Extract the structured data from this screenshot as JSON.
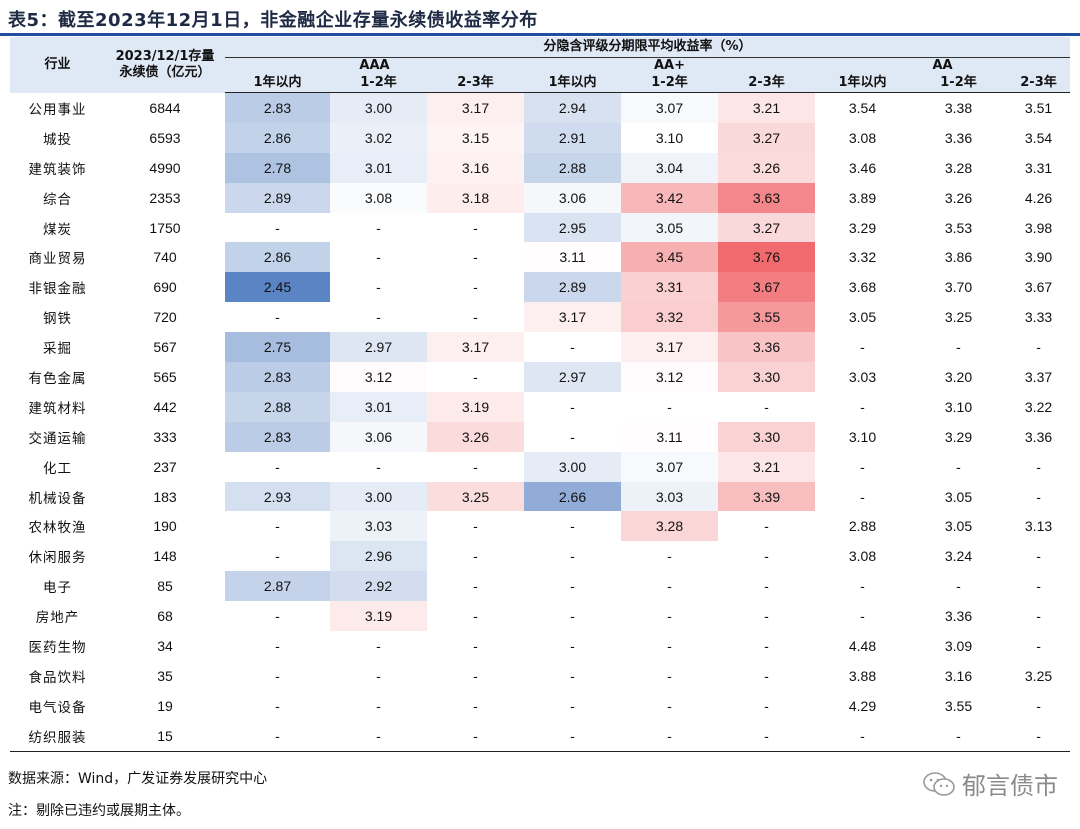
{
  "title": "表5：截至2023年12月1日，非金融企业存量永续债收益率分布",
  "header": {
    "industry": "行业",
    "stock_line1": "2023/12/1存量",
    "stock_line2": "永续债（亿元）",
    "rate_group": "分隐含评级分期限平均收益率（%）",
    "ratings": [
      "AAA",
      "AA+",
      "AA"
    ],
    "terms": [
      "1年以内",
      "1-2年",
      "2-3年"
    ]
  },
  "rows": [
    {
      "industry": "公用事业",
      "stock": "6844",
      "values": [
        "2.83",
        "3.00",
        "3.17",
        "2.94",
        "3.07",
        "3.21",
        "3.54",
        "3.38",
        "3.51"
      ]
    },
    {
      "industry": "城投",
      "stock": "6593",
      "values": [
        "2.86",
        "3.02",
        "3.15",
        "2.91",
        "3.10",
        "3.27",
        "3.08",
        "3.36",
        "3.54"
      ]
    },
    {
      "industry": "建筑装饰",
      "stock": "4990",
      "values": [
        "2.78",
        "3.01",
        "3.16",
        "2.88",
        "3.04",
        "3.26",
        "3.46",
        "3.28",
        "3.31"
      ]
    },
    {
      "industry": "综合",
      "stock": "2353",
      "values": [
        "2.89",
        "3.08",
        "3.18",
        "3.06",
        "3.42",
        "3.63",
        "3.89",
        "3.26",
        "4.26"
      ]
    },
    {
      "industry": "煤炭",
      "stock": "1750",
      "values": [
        "-",
        "-",
        "-",
        "2.95",
        "3.05",
        "3.27",
        "3.29",
        "3.53",
        "3.98"
      ]
    },
    {
      "industry": "商业贸易",
      "stock": "740",
      "values": [
        "2.86",
        "-",
        "-",
        "3.11",
        "3.45",
        "3.76",
        "3.32",
        "3.86",
        "3.90"
      ]
    },
    {
      "industry": "非银金融",
      "stock": "690",
      "values": [
        "2.45",
        "-",
        "-",
        "2.89",
        "3.31",
        "3.67",
        "3.68",
        "3.70",
        "3.67"
      ]
    },
    {
      "industry": "钢铁",
      "stock": "720",
      "values": [
        "-",
        "-",
        "-",
        "3.17",
        "3.32",
        "3.55",
        "3.05",
        "3.25",
        "3.33"
      ]
    },
    {
      "industry": "采掘",
      "stock": "567",
      "values": [
        "2.75",
        "2.97",
        "3.17",
        "-",
        "3.17",
        "3.36",
        "-",
        "-",
        "-"
      ]
    },
    {
      "industry": "有色金属",
      "stock": "565",
      "values": [
        "2.83",
        "3.12",
        "-",
        "2.97",
        "3.12",
        "3.30",
        "3.03",
        "3.20",
        "3.37"
      ]
    },
    {
      "industry": "建筑材料",
      "stock": "442",
      "values": [
        "2.88",
        "3.01",
        "3.19",
        "-",
        "-",
        "-",
        "-",
        "3.10",
        "3.22"
      ]
    },
    {
      "industry": "交通运输",
      "stock": "333",
      "values": [
        "2.83",
        "3.06",
        "3.26",
        "-",
        "3.11",
        "3.30",
        "3.10",
        "3.29",
        "3.36"
      ]
    },
    {
      "industry": "化工",
      "stock": "237",
      "values": [
        "-",
        "-",
        "-",
        "3.00",
        "3.07",
        "3.21",
        "-",
        "-",
        "-"
      ]
    },
    {
      "industry": "机械设备",
      "stock": "183",
      "values": [
        "2.93",
        "3.00",
        "3.25",
        "2.66",
        "3.03",
        "3.39",
        "-",
        "3.05",
        "-"
      ]
    },
    {
      "industry": "农林牧渔",
      "stock": "190",
      "values": [
        "-",
        "3.03",
        "-",
        "-",
        "3.28",
        "-",
        "2.88",
        "3.05",
        "3.13"
      ]
    },
    {
      "industry": "休闲服务",
      "stock": "148",
      "values": [
        "-",
        "2.96",
        "-",
        "-",
        "-",
        "-",
        "3.08",
        "3.24",
        "-"
      ]
    },
    {
      "industry": "电子",
      "stock": "85",
      "values": [
        "2.87",
        "2.92",
        "-",
        "-",
        "-",
        "-",
        "-",
        "-",
        "-"
      ]
    },
    {
      "industry": "房地产",
      "stock": "68",
      "values": [
        "-",
        "3.19",
        "-",
        "-",
        "-",
        "-",
        "-",
        "3.36",
        "-"
      ]
    },
    {
      "industry": "医药生物",
      "stock": "34",
      "values": [
        "-",
        "-",
        "-",
        "-",
        "-",
        "-",
        "4.48",
        "3.09",
        "-"
      ]
    },
    {
      "industry": "食品饮料",
      "stock": "35",
      "values": [
        "-",
        "-",
        "-",
        "-",
        "-",
        "-",
        "3.88",
        "3.16",
        "3.25"
      ]
    },
    {
      "industry": "电气设备",
      "stock": "19",
      "values": [
        "-",
        "-",
        "-",
        "-",
        "-",
        "-",
        "4.29",
        "3.55",
        "-"
      ]
    },
    {
      "industry": "纺织服装",
      "stock": "15",
      "values": [
        "-",
        "-",
        "-",
        "-",
        "-",
        "-",
        "-",
        "-",
        "-"
      ]
    }
  ],
  "colors": {
    "low": "#5b84c4",
    "mid": "#ffffff",
    "high": "#f06a6e",
    "header_bg": "#dfe8f5",
    "title_rule": "#1f4e9c"
  },
  "footer": {
    "source": "数据来源：Wind，广发证券发展研究中心",
    "note": "注：剔除已违约或展期主体。"
  },
  "watermark": {
    "text": "郁言债市",
    "icon": "wechat-icon"
  }
}
